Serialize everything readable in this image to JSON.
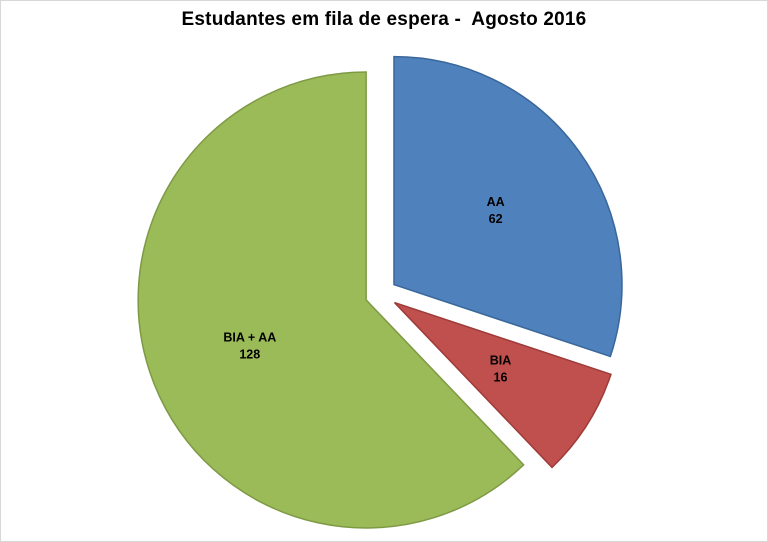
{
  "chart_data": {
    "type": "pie",
    "title": "Estudantes em fila de espera -  Agosto 2016",
    "total": 206,
    "legend": "none",
    "exploded": true,
    "start_angle_deg": 0,
    "direction": "clockwise",
    "slices": [
      {
        "id": "aa",
        "label": "AA",
        "value": 62,
        "color": "#4F81BD",
        "border": "#3A679A"
      },
      {
        "id": "bia",
        "label": "BIA",
        "value": 16,
        "color": "#C0504D",
        "border": "#9E3B39"
      },
      {
        "id": "bia-aa",
        "label": "BIA + AA",
        "value": 128,
        "color": "#9BBB59",
        "border": "#7E9A45"
      }
    ]
  }
}
